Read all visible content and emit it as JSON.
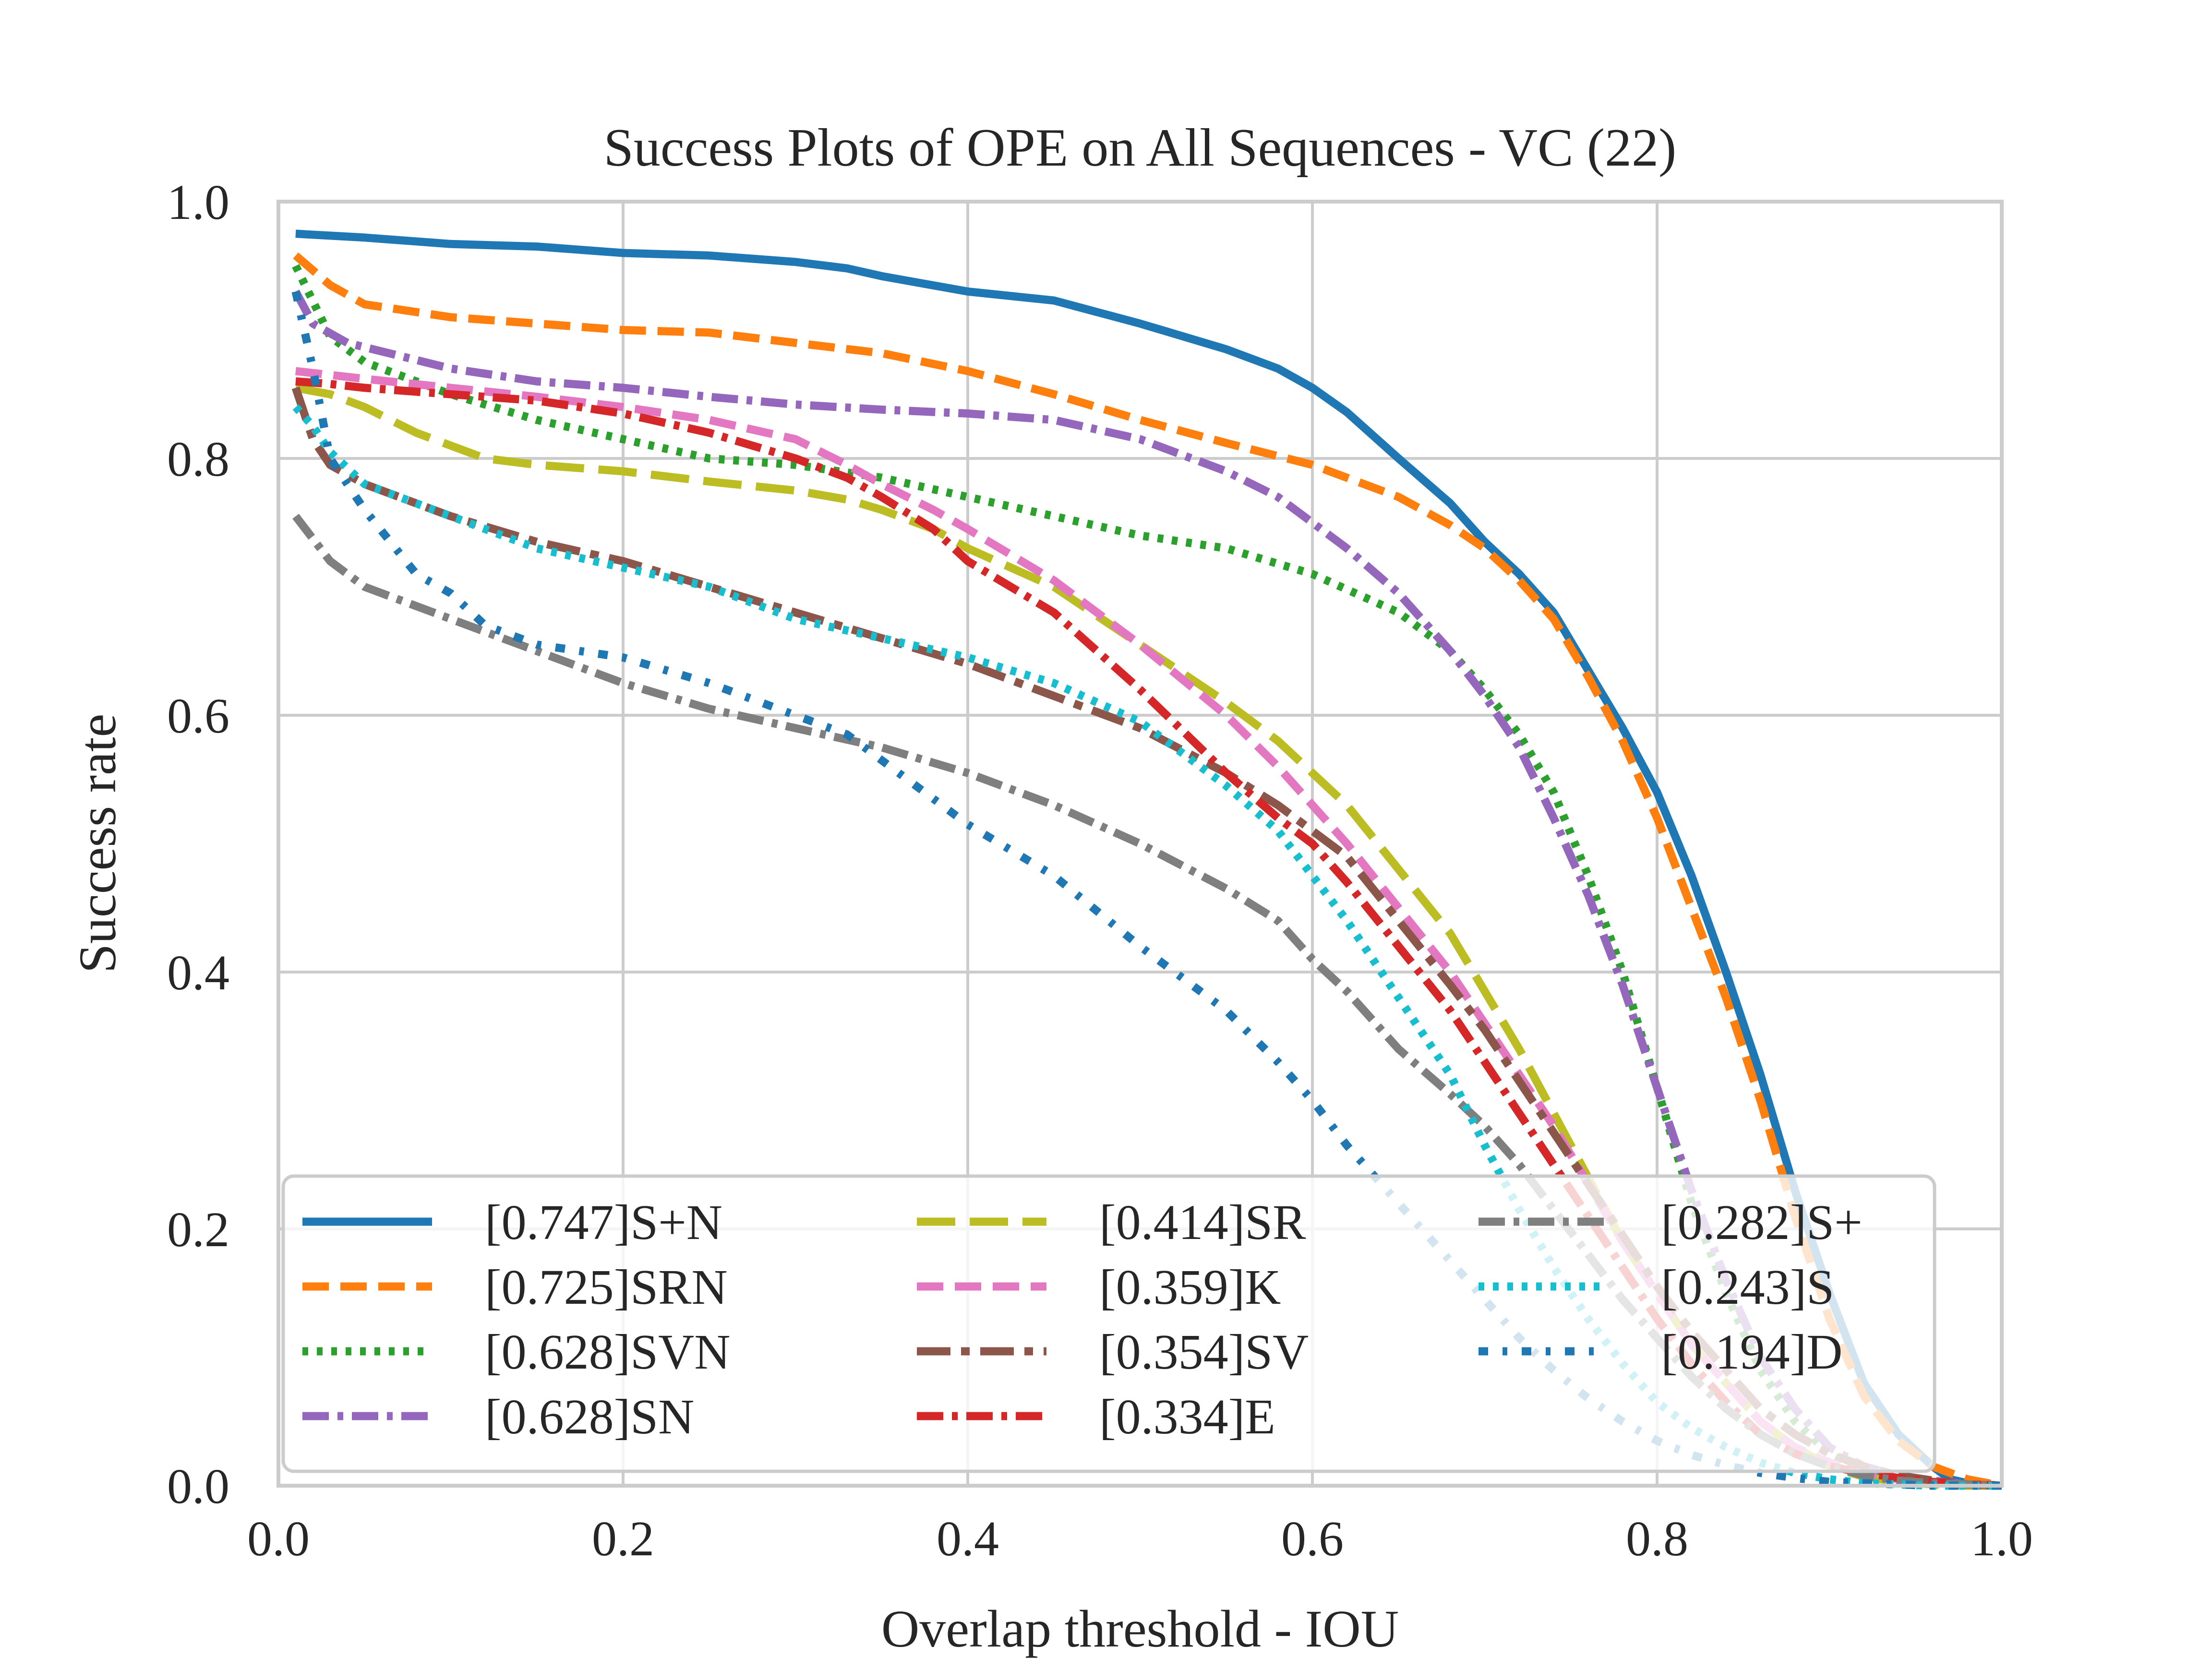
{
  "chart_data": {
    "type": "line",
    "title": "Success Plots of OPE on All Sequences - VC (22)",
    "xlabel": "Overlap threshold - IOU",
    "ylabel": "Success rate",
    "xlim": [
      0,
      1
    ],
    "ylim": [
      0,
      1
    ],
    "xticks": [
      "0.0",
      "0.2",
      "0.4",
      "0.6",
      "0.8",
      "1.0"
    ],
    "yticks": [
      "0.0",
      "0.2",
      "0.4",
      "0.6",
      "0.8",
      "1.0"
    ],
    "grid": true,
    "legend_position": "lower-left",
    "legend_columns": 3,
    "series": [
      {
        "name": "[0.747]S+N",
        "color": "#1f77b4",
        "style": "solid",
        "x": [
          0.01,
          0.05,
          0.1,
          0.15,
          0.2,
          0.25,
          0.3,
          0.33,
          0.35,
          0.4,
          0.45,
          0.5,
          0.55,
          0.58,
          0.6,
          0.62,
          0.65,
          0.68,
          0.7,
          0.72,
          0.74,
          0.76,
          0.78,
          0.8,
          0.82,
          0.84,
          0.86,
          0.88,
          0.9,
          0.92,
          0.94,
          0.96,
          0.97,
          0.98,
          1.0
        ],
        "y": [
          0.975,
          0.972,
          0.967,
          0.965,
          0.96,
          0.958,
          0.953,
          0.948,
          0.942,
          0.93,
          0.923,
          0.905,
          0.885,
          0.87,
          0.855,
          0.836,
          0.8,
          0.765,
          0.735,
          0.71,
          0.68,
          0.635,
          0.59,
          0.54,
          0.475,
          0.4,
          0.32,
          0.23,
          0.15,
          0.08,
          0.04,
          0.015,
          0.005,
          0.002,
          0.0
        ]
      },
      {
        "name": "[0.725]SRN",
        "color": "#ff7f0e",
        "style": "dashed",
        "x": [
          0.01,
          0.03,
          0.05,
          0.1,
          0.15,
          0.2,
          0.25,
          0.3,
          0.35,
          0.4,
          0.45,
          0.5,
          0.55,
          0.6,
          0.65,
          0.68,
          0.7,
          0.72,
          0.74,
          0.76,
          0.78,
          0.8,
          0.82,
          0.84,
          0.86,
          0.88,
          0.9,
          0.92,
          0.94,
          0.96,
          0.98,
          1.0
        ],
        "y": [
          0.958,
          0.935,
          0.92,
          0.91,
          0.905,
          0.9,
          0.898,
          0.89,
          0.882,
          0.868,
          0.85,
          0.83,
          0.812,
          0.795,
          0.77,
          0.748,
          0.73,
          0.705,
          0.675,
          0.63,
          0.58,
          0.52,
          0.45,
          0.38,
          0.3,
          0.21,
          0.13,
          0.07,
          0.035,
          0.015,
          0.005,
          0.0
        ]
      },
      {
        "name": "[0.628]SVN",
        "color": "#2ca02c",
        "style": "dotted",
        "x": [
          0.01,
          0.03,
          0.05,
          0.1,
          0.15,
          0.2,
          0.25,
          0.3,
          0.35,
          0.4,
          0.45,
          0.5,
          0.55,
          0.6,
          0.65,
          0.68,
          0.7,
          0.72,
          0.74,
          0.76,
          0.78,
          0.8,
          0.82,
          0.84,
          0.86,
          0.88,
          0.9,
          0.92,
          0.94,
          0.96,
          0.98,
          1.0
        ],
        "y": [
          0.95,
          0.895,
          0.875,
          0.85,
          0.83,
          0.815,
          0.8,
          0.795,
          0.785,
          0.77,
          0.755,
          0.74,
          0.73,
          0.71,
          0.68,
          0.65,
          0.62,
          0.585,
          0.54,
          0.475,
          0.4,
          0.31,
          0.22,
          0.15,
          0.09,
          0.05,
          0.025,
          0.01,
          0.005,
          0.002,
          0.001,
          0.0
        ]
      },
      {
        "name": "[0.628]SN",
        "color": "#9467bd",
        "style": "dashdot",
        "x": [
          0.01,
          0.02,
          0.04,
          0.07,
          0.1,
          0.15,
          0.2,
          0.25,
          0.3,
          0.35,
          0.4,
          0.45,
          0.5,
          0.55,
          0.58,
          0.6,
          0.62,
          0.65,
          0.68,
          0.7,
          0.72,
          0.74,
          0.76,
          0.78,
          0.8,
          0.82,
          0.84,
          0.86,
          0.88,
          0.9,
          0.92,
          0.94,
          0.96,
          0.98,
          1.0
        ],
        "y": [
          0.93,
          0.905,
          0.89,
          0.88,
          0.87,
          0.86,
          0.855,
          0.848,
          0.842,
          0.838,
          0.835,
          0.83,
          0.815,
          0.79,
          0.77,
          0.75,
          0.73,
          0.695,
          0.65,
          0.615,
          0.575,
          0.52,
          0.46,
          0.39,
          0.31,
          0.23,
          0.16,
          0.1,
          0.06,
          0.03,
          0.015,
          0.008,
          0.004,
          0.001,
          0.0
        ]
      },
      {
        "name": "[0.414]SR",
        "color": "#bcbd22",
        "style": "longdash",
        "x": [
          0.01,
          0.03,
          0.05,
          0.08,
          0.12,
          0.15,
          0.2,
          0.25,
          0.3,
          0.33,
          0.35,
          0.38,
          0.4,
          0.45,
          0.5,
          0.55,
          0.58,
          0.6,
          0.62,
          0.65,
          0.68,
          0.7,
          0.72,
          0.74,
          0.76,
          0.78,
          0.8,
          0.82,
          0.84,
          0.86,
          0.88,
          0.9,
          0.92,
          0.94,
          0.96,
          0.98,
          1.0
        ],
        "y": [
          0.855,
          0.85,
          0.84,
          0.82,
          0.8,
          0.795,
          0.79,
          0.782,
          0.775,
          0.768,
          0.76,
          0.745,
          0.73,
          0.7,
          0.655,
          0.61,
          0.58,
          0.555,
          0.53,
          0.48,
          0.43,
          0.385,
          0.34,
          0.29,
          0.24,
          0.19,
          0.15,
          0.11,
          0.08,
          0.05,
          0.03,
          0.015,
          0.007,
          0.003,
          0.001,
          0.0,
          0.0
        ]
      },
      {
        "name": "[0.359]K",
        "color": "#e377c2",
        "style": "dashed",
        "x": [
          0.01,
          0.03,
          0.05,
          0.1,
          0.15,
          0.2,
          0.25,
          0.3,
          0.33,
          0.35,
          0.38,
          0.4,
          0.45,
          0.5,
          0.55,
          0.58,
          0.6,
          0.62,
          0.65,
          0.68,
          0.7,
          0.72,
          0.74,
          0.76,
          0.78,
          0.8,
          0.82,
          0.84,
          0.86,
          0.88,
          0.9,
          0.92,
          0.94,
          0.96,
          0.98,
          1.0
        ],
        "y": [
          0.868,
          0.865,
          0.862,
          0.855,
          0.848,
          0.84,
          0.83,
          0.815,
          0.795,
          0.78,
          0.76,
          0.745,
          0.705,
          0.655,
          0.6,
          0.56,
          0.53,
          0.5,
          0.45,
          0.4,
          0.36,
          0.32,
          0.28,
          0.235,
          0.19,
          0.15,
          0.11,
          0.08,
          0.05,
          0.03,
          0.018,
          0.01,
          0.005,
          0.002,
          0.001,
          0.0
        ]
      },
      {
        "name": "[0.354]SV",
        "color": "#8c564b",
        "style": "dashdot-long",
        "x": [
          0.01,
          0.02,
          0.03,
          0.05,
          0.1,
          0.15,
          0.2,
          0.25,
          0.3,
          0.35,
          0.4,
          0.45,
          0.5,
          0.55,
          0.58,
          0.6,
          0.62,
          0.65,
          0.68,
          0.7,
          0.72,
          0.74,
          0.76,
          0.78,
          0.8,
          0.82,
          0.84,
          0.86,
          0.88,
          0.9,
          0.92,
          0.94,
          0.96,
          0.98,
          1.0
        ],
        "y": [
          0.855,
          0.815,
          0.795,
          0.78,
          0.755,
          0.735,
          0.72,
          0.7,
          0.68,
          0.66,
          0.64,
          0.615,
          0.59,
          0.555,
          0.53,
          0.51,
          0.49,
          0.44,
          0.39,
          0.355,
          0.315,
          0.275,
          0.235,
          0.195,
          0.155,
          0.12,
          0.09,
          0.06,
          0.04,
          0.025,
          0.015,
          0.008,
          0.004,
          0.001,
          0.0
        ]
      },
      {
        "name": "[0.334]E",
        "color": "#d62728",
        "style": "dashdot",
        "x": [
          0.01,
          0.03,
          0.05,
          0.1,
          0.15,
          0.2,
          0.25,
          0.3,
          0.33,
          0.35,
          0.38,
          0.4,
          0.45,
          0.5,
          0.55,
          0.58,
          0.6,
          0.62,
          0.65,
          0.68,
          0.7,
          0.72,
          0.74,
          0.76,
          0.78,
          0.8,
          0.82,
          0.84,
          0.86,
          0.88,
          0.9,
          0.92,
          0.94,
          0.96,
          0.98,
          1.0
        ],
        "y": [
          0.86,
          0.858,
          0.855,
          0.85,
          0.845,
          0.835,
          0.82,
          0.8,
          0.785,
          0.77,
          0.745,
          0.72,
          0.68,
          0.62,
          0.555,
          0.52,
          0.5,
          0.47,
          0.42,
          0.37,
          0.33,
          0.29,
          0.25,
          0.21,
          0.17,
          0.13,
          0.095,
          0.065,
          0.04,
          0.025,
          0.015,
          0.01,
          0.006,
          0.003,
          0.001,
          0.0
        ]
      },
      {
        "name": "[0.282]S+",
        "color": "#7f7f7f",
        "style": "dashdot",
        "x": [
          0.01,
          0.03,
          0.05,
          0.08,
          0.1,
          0.15,
          0.2,
          0.25,
          0.3,
          0.35,
          0.4,
          0.45,
          0.5,
          0.55,
          0.58,
          0.6,
          0.62,
          0.65,
          0.68,
          0.7,
          0.72,
          0.74,
          0.76,
          0.78,
          0.8,
          0.82,
          0.84,
          0.86,
          0.88,
          0.9,
          0.92,
          0.94,
          0.96,
          0.98,
          1.0
        ],
        "y": [
          0.755,
          0.72,
          0.7,
          0.685,
          0.675,
          0.65,
          0.625,
          0.605,
          0.59,
          0.575,
          0.555,
          0.53,
          0.5,
          0.465,
          0.44,
          0.41,
          0.385,
          0.34,
          0.305,
          0.28,
          0.25,
          0.215,
          0.18,
          0.145,
          0.115,
          0.085,
          0.06,
          0.04,
          0.025,
          0.015,
          0.008,
          0.004,
          0.002,
          0.001,
          0.0
        ]
      },
      {
        "name": "[0.243]S",
        "color": "#17becf",
        "style": "dotted",
        "x": [
          0.01,
          0.02,
          0.03,
          0.05,
          0.1,
          0.15,
          0.2,
          0.25,
          0.3,
          0.35,
          0.4,
          0.45,
          0.5,
          0.53,
          0.55,
          0.58,
          0.6,
          0.62,
          0.65,
          0.68,
          0.7,
          0.72,
          0.74,
          0.76,
          0.78,
          0.8,
          0.82,
          0.84,
          0.86,
          0.88,
          0.9,
          0.92,
          0.94,
          0.96,
          0.98,
          1.0
        ],
        "y": [
          0.84,
          0.825,
          0.805,
          0.78,
          0.755,
          0.73,
          0.715,
          0.7,
          0.675,
          0.66,
          0.645,
          0.625,
          0.595,
          0.565,
          0.545,
          0.51,
          0.475,
          0.44,
          0.38,
          0.32,
          0.265,
          0.215,
          0.17,
          0.13,
          0.095,
          0.065,
          0.045,
          0.03,
          0.018,
          0.01,
          0.005,
          0.002,
          0.001,
          0.0,
          0.0,
          0.0
        ]
      },
      {
        "name": "[0.194]D",
        "color": "#1f77b4",
        "style": "dashdot-sparse",
        "x": [
          0.01,
          0.02,
          0.03,
          0.05,
          0.08,
          0.1,
          0.12,
          0.15,
          0.2,
          0.25,
          0.3,
          0.33,
          0.35,
          0.38,
          0.4,
          0.45,
          0.5,
          0.55,
          0.58,
          0.6,
          0.62,
          0.65,
          0.68,
          0.7,
          0.72,
          0.74,
          0.76,
          0.78,
          0.8,
          0.82,
          0.84,
          0.86,
          0.88,
          0.9,
          0.92,
          0.94,
          0.96,
          0.98,
          1.0
        ],
        "y": [
          0.93,
          0.87,
          0.8,
          0.76,
          0.71,
          0.695,
          0.67,
          0.655,
          0.645,
          0.625,
          0.6,
          0.585,
          0.565,
          0.535,
          0.515,
          0.475,
          0.42,
          0.37,
          0.33,
          0.3,
          0.265,
          0.22,
          0.175,
          0.145,
          0.115,
          0.09,
          0.068,
          0.05,
          0.035,
          0.024,
          0.016,
          0.01,
          0.006,
          0.003,
          0.002,
          0.001,
          0.0,
          0.0,
          0.0
        ]
      }
    ]
  }
}
